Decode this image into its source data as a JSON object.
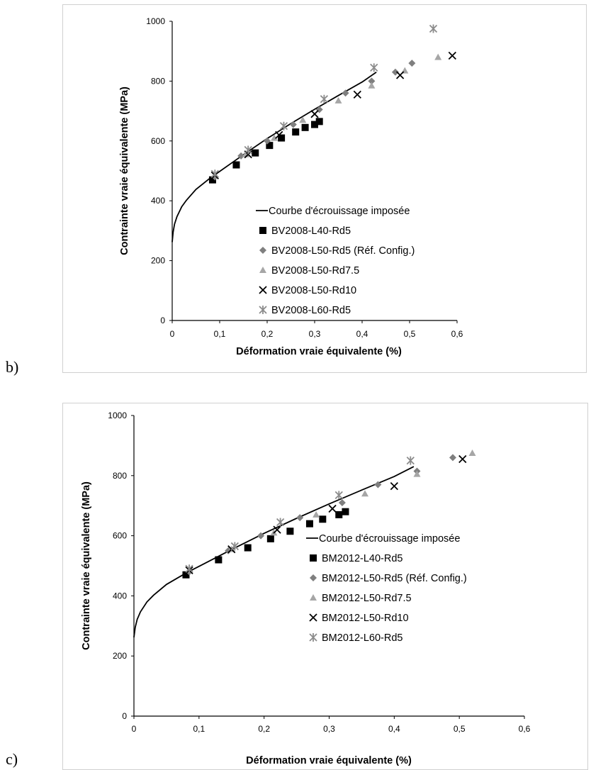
{
  "panels": [
    {
      "letter": "b)"
    },
    {
      "letter": "c)"
    }
  ],
  "chart_data": [
    {
      "type": "scatter",
      "xlabel": "Déformation vraie équivalente (%)",
      "ylabel": "Contrainte vraie équivalente (MPa)",
      "xlim": [
        0,
        0.6
      ],
      "ylim": [
        0,
        1000
      ],
      "x_ticks": [
        "0",
        "0,1",
        "0,2",
        "0,3",
        "0,4",
        "0,5",
        "0,6"
      ],
      "y_ticks": [
        "0",
        "200",
        "400",
        "600",
        "800",
        "1000"
      ],
      "grid": false,
      "legend_position": "bottom-right",
      "curve": {
        "name": "Courbe d'écrouissage imposée",
        "x": [
          0,
          0.002,
          0.005,
          0.01,
          0.02,
          0.03,
          0.05,
          0.08,
          0.1,
          0.15,
          0.2,
          0.25,
          0.3,
          0.35,
          0.4,
          0.43
        ],
        "y": [
          262,
          295,
          322,
          347,
          380,
          402,
          438,
          476,
          498,
          554,
          608,
          658,
          706,
          752,
          797,
          830
        ]
      },
      "series": [
        {
          "name": "BV2008-L40-Rd5",
          "marker": "square",
          "x": [
            0.085,
            0.135,
            0.175,
            0.205,
            0.23,
            0.26,
            0.28,
            0.3,
            0.31
          ],
          "y": [
            470,
            520,
            560,
            585,
            610,
            630,
            645,
            655,
            665
          ]
        },
        {
          "name": "BV2008-L50-Rd5 (Réf. Config.)",
          "marker": "diamond",
          "x": [
            0.09,
            0.145,
            0.2,
            0.255,
            0.31,
            0.365,
            0.42,
            0.47,
            0.505
          ],
          "y": [
            480,
            550,
            600,
            655,
            705,
            760,
            800,
            830,
            860
          ]
        },
        {
          "name": "BV2008-L50-Rd7.5",
          "marker": "triangle",
          "x": [
            0.09,
            0.155,
            0.215,
            0.275,
            0.35,
            0.42,
            0.49,
            0.56
          ],
          "y": [
            485,
            555,
            610,
            670,
            735,
            785,
            835,
            880
          ]
        },
        {
          "name": "BV2008-L50-Rd10",
          "marker": "cross",
          "x": [
            0.09,
            0.16,
            0.225,
            0.3,
            0.39,
            0.48,
            0.59
          ],
          "y": [
            485,
            555,
            620,
            690,
            755,
            820,
            885
          ]
        },
        {
          "name": "BV2008-L60-Rd5",
          "marker": "star",
          "x": [
            0.09,
            0.16,
            0.235,
            0.32,
            0.425,
            0.55
          ],
          "y": [
            490,
            570,
            650,
            740,
            845,
            975
          ]
        }
      ]
    },
    {
      "type": "scatter",
      "xlabel": "Déformation vraie équivalente (%)",
      "ylabel": "Contrainte vraie équivalente (MPa)",
      "xlim": [
        0,
        0.6
      ],
      "ylim": [
        0,
        1000
      ],
      "x_ticks": [
        "0",
        "0,1",
        "0,2",
        "0,3",
        "0,4",
        "0,5",
        "0,6"
      ],
      "y_ticks": [
        "0",
        "200",
        "400",
        "600",
        "800",
        "1000"
      ],
      "grid": false,
      "legend_position": "bottom-right",
      "curve": {
        "name": "Courbe d'écrouissage imposée",
        "x": [
          0,
          0.002,
          0.005,
          0.01,
          0.02,
          0.03,
          0.05,
          0.08,
          0.1,
          0.15,
          0.2,
          0.25,
          0.3,
          0.35,
          0.4,
          0.43
        ],
        "y": [
          262,
          295,
          322,
          347,
          380,
          402,
          438,
          476,
          498,
          554,
          608,
          658,
          706,
          752,
          797,
          830
        ]
      },
      "series": [
        {
          "name": "BM2012-L40-Rd5",
          "marker": "square",
          "x": [
            0.08,
            0.13,
            0.175,
            0.21,
            0.24,
            0.27,
            0.29,
            0.315,
            0.325
          ],
          "y": [
            470,
            520,
            560,
            590,
            615,
            640,
            655,
            670,
            680
          ]
        },
        {
          "name": "BM2012-L50-Rd5 (Réf. Config.)",
          "marker": "diamond",
          "x": [
            0.085,
            0.145,
            0.195,
            0.255,
            0.32,
            0.375,
            0.435,
            0.49
          ],
          "y": [
            480,
            550,
            600,
            660,
            710,
            770,
            815,
            860
          ]
        },
        {
          "name": "BM2012-L50-Rd7.5",
          "marker": "triangle",
          "x": [
            0.085,
            0.15,
            0.215,
            0.28,
            0.355,
            0.435,
            0.52
          ],
          "y": [
            485,
            555,
            610,
            670,
            740,
            805,
            875
          ]
        },
        {
          "name": "BM2012-L50-Rd10",
          "marker": "cross",
          "x": [
            0.085,
            0.15,
            0.22,
            0.305,
            0.4,
            0.505
          ],
          "y": [
            485,
            555,
            620,
            690,
            765,
            855
          ]
        },
        {
          "name": "BM2012-L60-Rd5",
          "marker": "star",
          "x": [
            0.085,
            0.155,
            0.225,
            0.315,
            0.425
          ],
          "y": [
            490,
            565,
            645,
            735,
            850
          ]
        }
      ]
    }
  ]
}
